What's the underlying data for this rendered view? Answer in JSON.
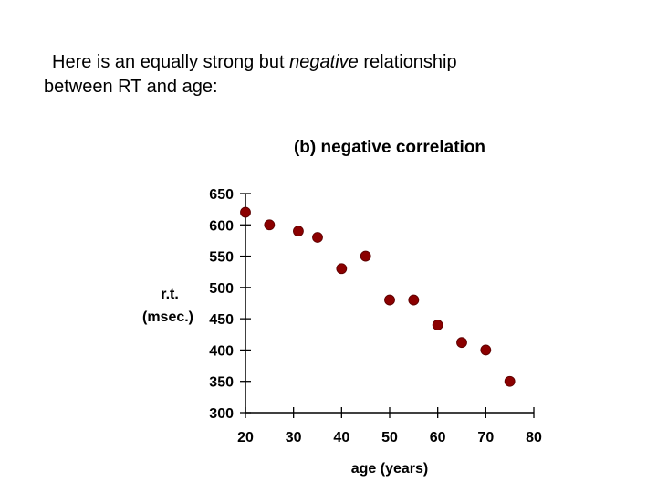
{
  "slide": {
    "text_before": "Here is an  equally strong but ",
    "text_emphasis": "negative",
    "text_after_line1": " relationship",
    "text_line2": "between RT and age:"
  },
  "chart_data": {
    "type": "scatter",
    "title": "(b) negative correlation",
    "xlabel": "age (years)",
    "ylabel_lines": [
      "r.t.",
      "(msec.)"
    ],
    "xlim": [
      20,
      80
    ],
    "ylim": [
      300,
      650
    ],
    "xticks": [
      20,
      30,
      40,
      50,
      60,
      70,
      80
    ],
    "yticks": [
      300,
      350,
      400,
      450,
      500,
      550,
      600,
      650
    ],
    "grid": false,
    "marker_color": "#8b0000",
    "points": [
      {
        "x": 20,
        "y": 620
      },
      {
        "x": 25,
        "y": 600
      },
      {
        "x": 31,
        "y": 590
      },
      {
        "x": 35,
        "y": 580
      },
      {
        "x": 40,
        "y": 530
      },
      {
        "x": 45,
        "y": 550
      },
      {
        "x": 50,
        "y": 480
      },
      {
        "x": 55,
        "y": 480
      },
      {
        "x": 60,
        "y": 440
      },
      {
        "x": 65,
        "y": 412
      },
      {
        "x": 70,
        "y": 400
      },
      {
        "x": 75,
        "y": 350
      }
    ]
  }
}
